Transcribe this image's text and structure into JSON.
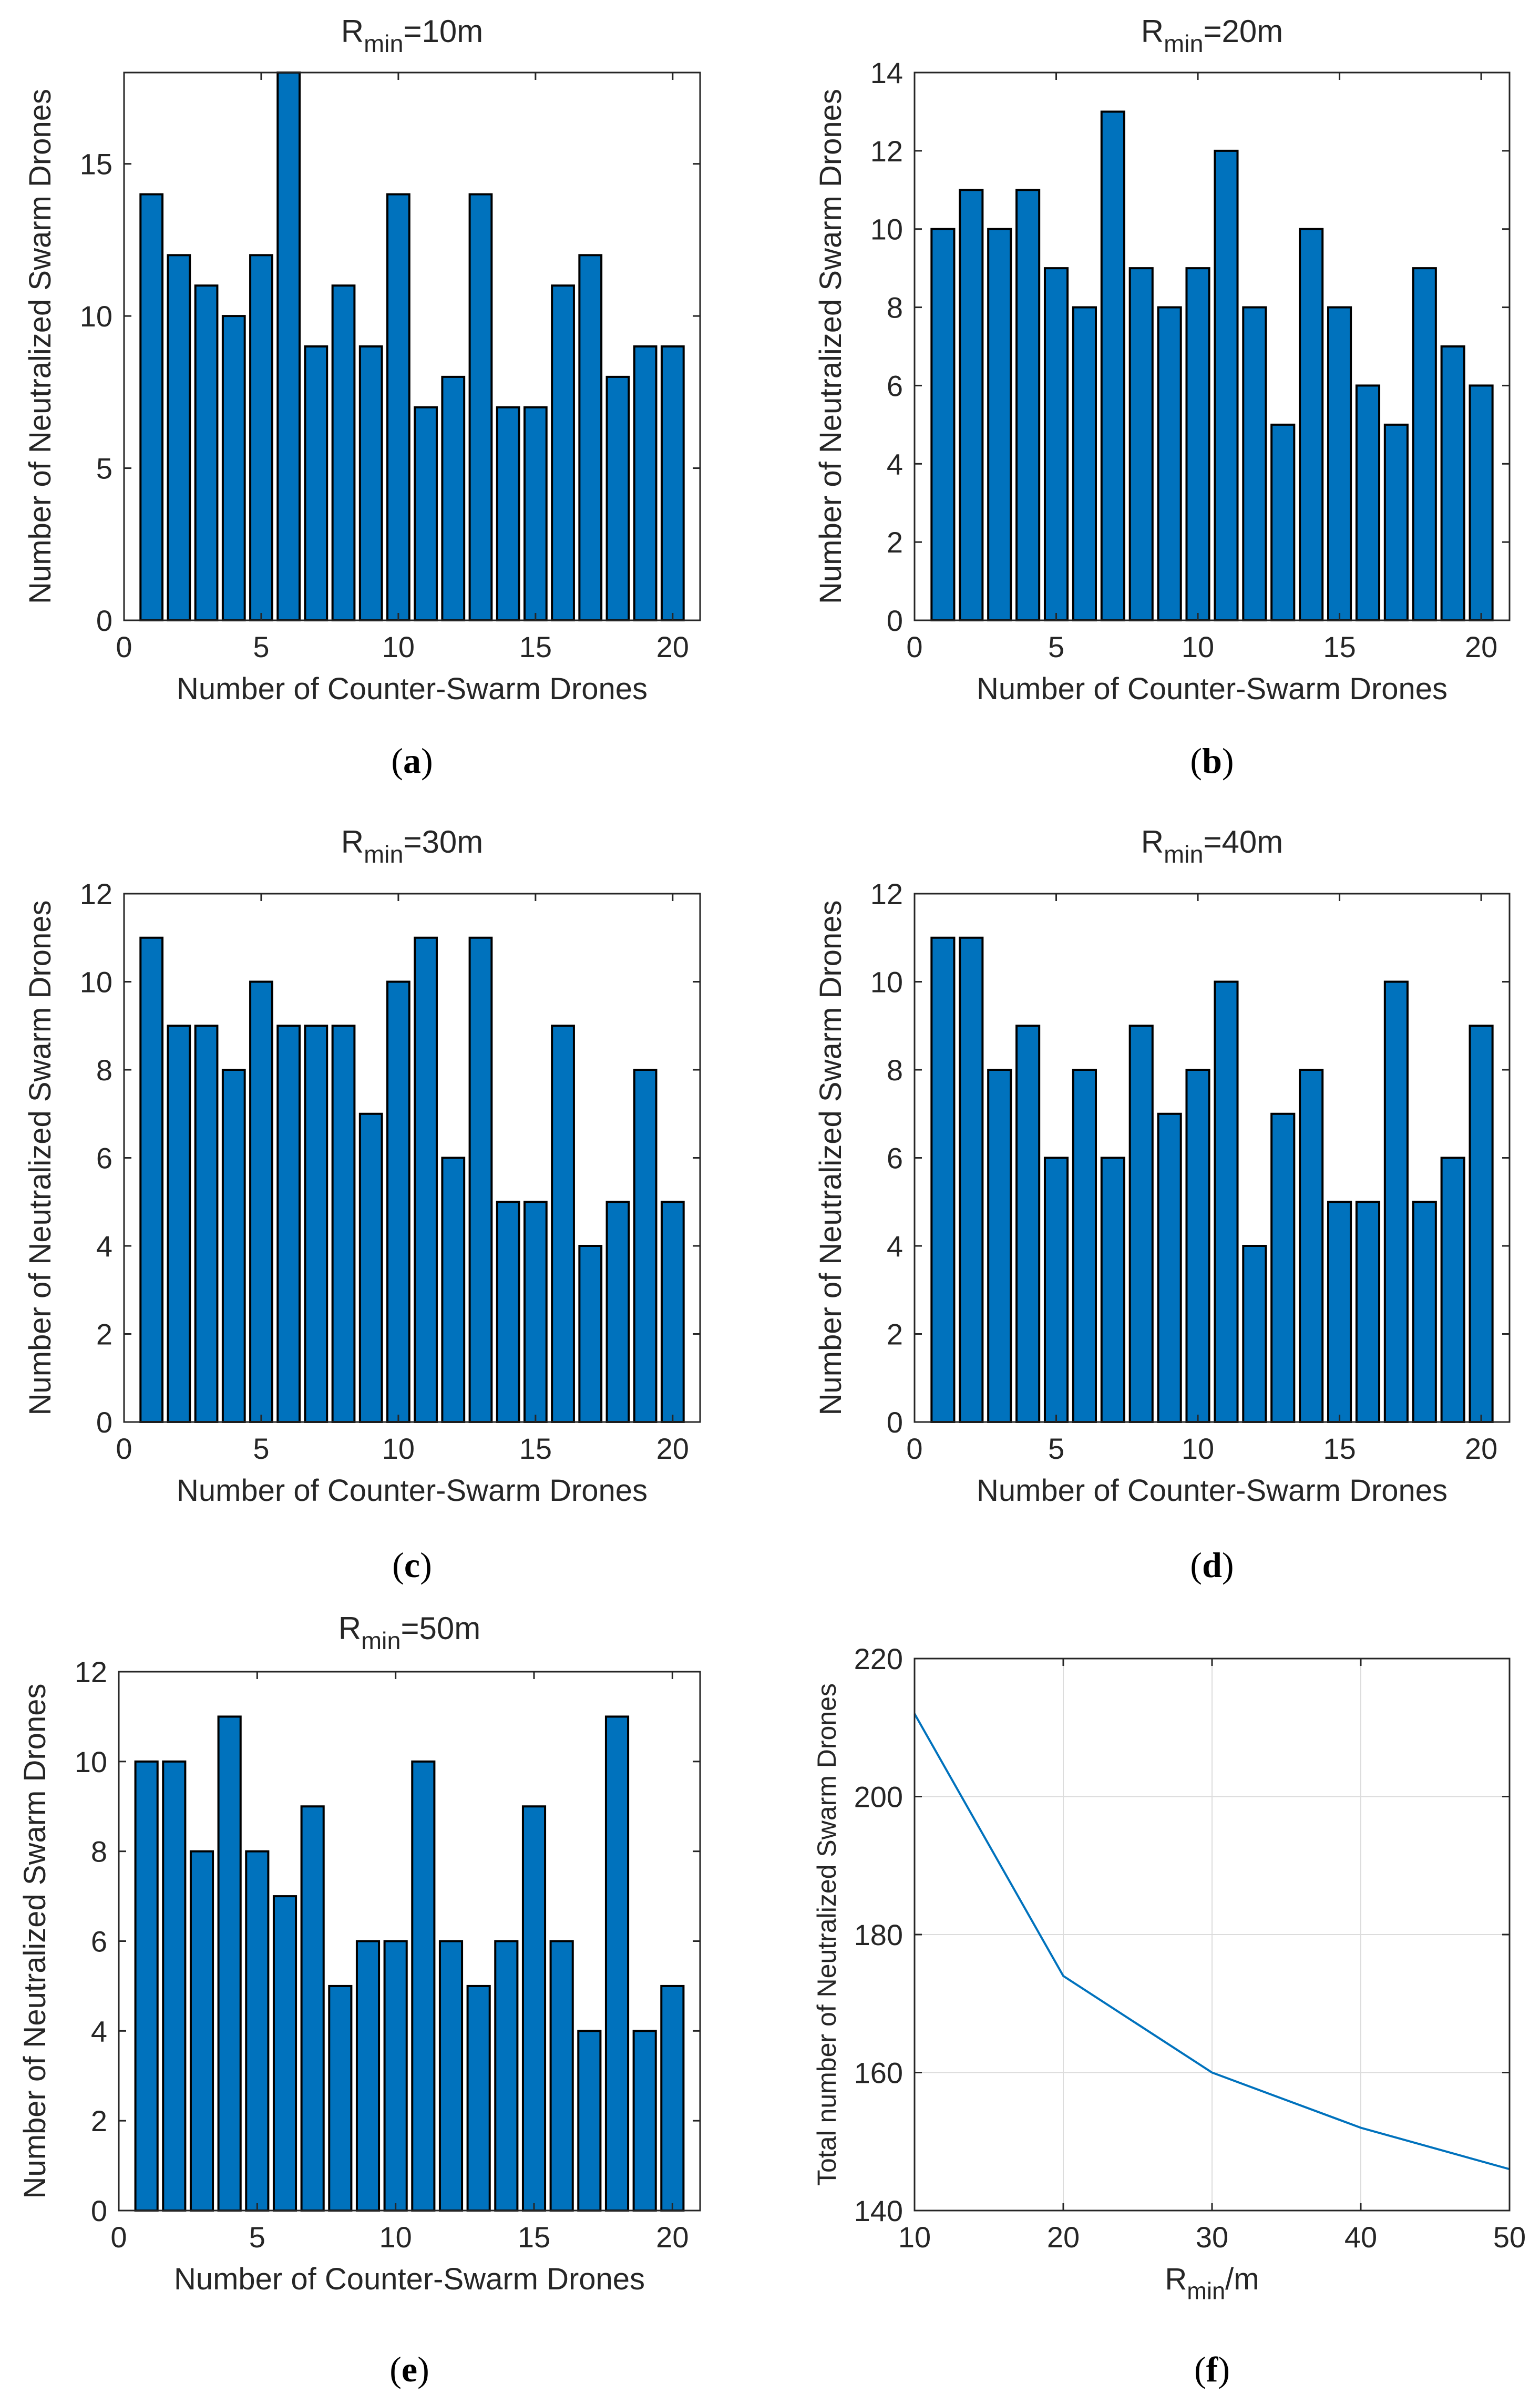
{
  "colors": {
    "bar": "#0072BD",
    "line": "#0072BD",
    "axis": "#262626",
    "grid": "#DCDCDC"
  },
  "chart_data": [
    {
      "id": "a",
      "type": "bar",
      "caption": "a",
      "title_main": "R",
      "title_sub": "min",
      "title_tail": "=10m",
      "xlabel": "Number of Counter-Swarm Drones",
      "ylabel": "Number of Neutralized Swarm Drones",
      "categories": [
        1,
        2,
        3,
        4,
        5,
        6,
        7,
        8,
        9,
        10,
        11,
        12,
        13,
        14,
        15,
        16,
        17,
        18,
        19,
        20
      ],
      "values": [
        14,
        12,
        11,
        10,
        12,
        18,
        9,
        11,
        9,
        14,
        7,
        8,
        14,
        7,
        7,
        11,
        12,
        8,
        9,
        9
      ],
      "xlim": [
        0,
        21
      ],
      "ylim": [
        0,
        18
      ],
      "xticks": [
        0,
        5,
        10,
        15,
        20
      ],
      "yticks": [
        0,
        5,
        10,
        15
      ],
      "grid": false
    },
    {
      "id": "b",
      "type": "bar",
      "caption": "b",
      "title_main": "R",
      "title_sub": "min",
      "title_tail": "=20m",
      "xlabel": "Number of Counter-Swarm Drones",
      "ylabel": "Number of Neutralized Swarm Drones",
      "categories": [
        1,
        2,
        3,
        4,
        5,
        6,
        7,
        8,
        9,
        10,
        11,
        12,
        13,
        14,
        15,
        16,
        17,
        18,
        19,
        20
      ],
      "values": [
        10,
        11,
        10,
        11,
        9,
        8,
        13,
        9,
        8,
        9,
        12,
        8,
        5,
        10,
        8,
        6,
        5,
        9,
        7,
        6
      ],
      "xlim": [
        0,
        21
      ],
      "ylim": [
        0,
        14
      ],
      "xticks": [
        0,
        5,
        10,
        15,
        20
      ],
      "yticks": [
        0,
        2,
        4,
        6,
        8,
        10,
        12,
        14
      ],
      "grid": false
    },
    {
      "id": "c",
      "type": "bar",
      "caption": "c",
      "title_main": "R",
      "title_sub": "min",
      "title_tail": "=30m",
      "xlabel": "Number of Counter-Swarm Drones",
      "ylabel": "Number of Neutralized Swarm Drones",
      "categories": [
        1,
        2,
        3,
        4,
        5,
        6,
        7,
        8,
        9,
        10,
        11,
        12,
        13,
        14,
        15,
        16,
        17,
        18,
        19,
        20
      ],
      "values": [
        11,
        9,
        9,
        8,
        10,
        9,
        9,
        9,
        7,
        10,
        11,
        6,
        11,
        5,
        5,
        9,
        4,
        5,
        8,
        5
      ],
      "xlim": [
        0,
        21
      ],
      "ylim": [
        0,
        12
      ],
      "xticks": [
        0,
        5,
        10,
        15,
        20
      ],
      "yticks": [
        0,
        2,
        4,
        6,
        8,
        10,
        12
      ],
      "grid": false
    },
    {
      "id": "d",
      "type": "bar",
      "caption": "d",
      "title_main": "R",
      "title_sub": "min",
      "title_tail": "=40m",
      "xlabel": "Number of Counter-Swarm Drones",
      "ylabel": "Number of Neutralized Swarm Drones",
      "categories": [
        1,
        2,
        3,
        4,
        5,
        6,
        7,
        8,
        9,
        10,
        11,
        12,
        13,
        14,
        15,
        16,
        17,
        18,
        19,
        20
      ],
      "values": [
        11,
        11,
        8,
        9,
        6,
        8,
        6,
        9,
        7,
        8,
        10,
        4,
        7,
        8,
        5,
        5,
        10,
        5,
        6,
        9
      ],
      "xlim": [
        0,
        21
      ],
      "ylim": [
        0,
        12
      ],
      "xticks": [
        0,
        5,
        10,
        15,
        20
      ],
      "yticks": [
        0,
        2,
        4,
        6,
        8,
        10,
        12
      ],
      "grid": false
    },
    {
      "id": "e",
      "type": "bar",
      "caption": "e",
      "title_main": "R",
      "title_sub": "min",
      "title_tail": "=50m",
      "xlabel": "Number of Counter-Swarm Drones",
      "ylabel": "Number of Neutralized Swarm Drones",
      "categories": [
        1,
        2,
        3,
        4,
        5,
        6,
        7,
        8,
        9,
        10,
        11,
        12,
        13,
        14,
        15,
        16,
        17,
        18,
        19,
        20
      ],
      "values": [
        10,
        10,
        8,
        11,
        8,
        7,
        9,
        5,
        6,
        6,
        10,
        6,
        5,
        6,
        9,
        6,
        4,
        11,
        4,
        5
      ],
      "xlim": [
        0,
        21
      ],
      "ylim": [
        0,
        12
      ],
      "xticks": [
        0,
        5,
        10,
        15,
        20
      ],
      "yticks": [
        0,
        2,
        4,
        6,
        8,
        10,
        12
      ],
      "grid": false
    },
    {
      "id": "f",
      "type": "line",
      "caption": "f",
      "title_main": "",
      "title_sub": "",
      "title_tail": "",
      "xlabel_main": "R",
      "xlabel_sub": "min",
      "xlabel_tail": "/m",
      "ylabel": "Total number of Neutralized Swarm Drones",
      "x": [
        10,
        20,
        30,
        40,
        50
      ],
      "y": [
        212,
        174,
        160,
        152,
        146
      ],
      "xlim": [
        10,
        50
      ],
      "ylim": [
        140,
        220
      ],
      "xticks": [
        10,
        20,
        30,
        40,
        50
      ],
      "yticks": [
        140,
        160,
        180,
        200,
        220
      ],
      "grid": true
    }
  ]
}
